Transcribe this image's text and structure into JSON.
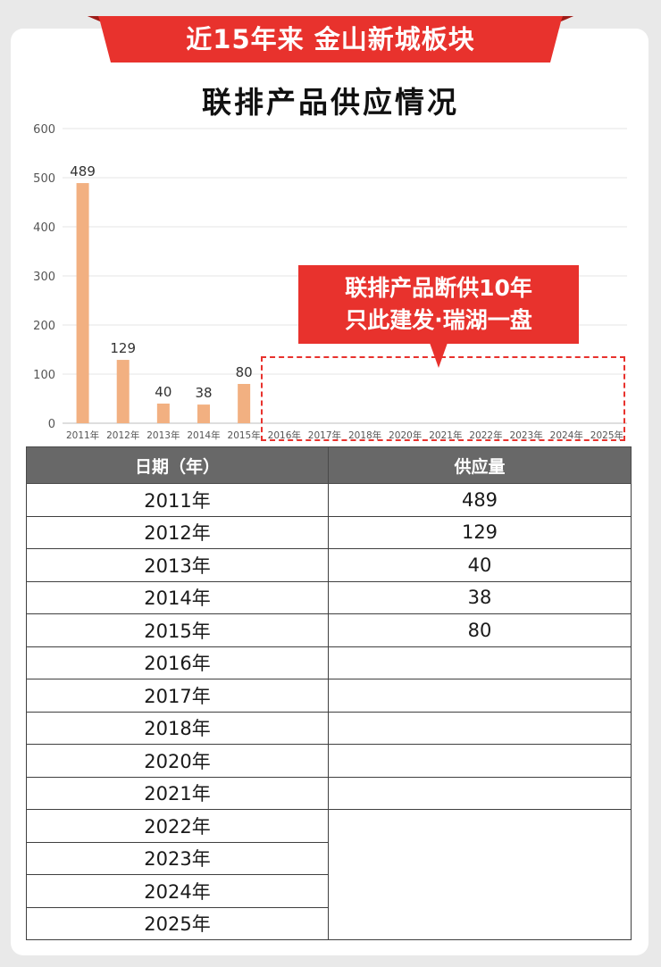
{
  "banner": {
    "text": "近15年来 金山新城板块"
  },
  "title": "联排产品供应情况",
  "callout": {
    "line1": "联排产品断供10年",
    "line2": "只此建发·瑞湖一盘"
  },
  "colors": {
    "bar": "#f2b081",
    "accent": "#e8322d",
    "header_bg": "#686868",
    "grid": "#e6e6e6"
  },
  "chart_data": {
    "type": "bar",
    "categories": [
      "2011年",
      "2012年",
      "2013年",
      "2014年",
      "2015年",
      "2016年",
      "2017年",
      "2018年",
      "2020年",
      "2021年",
      "2022年",
      "2023年",
      "2024年",
      "2025年"
    ],
    "values": [
      489,
      129,
      40,
      38,
      80,
      null,
      null,
      null,
      null,
      null,
      null,
      null,
      null,
      null
    ],
    "yticks": [
      0,
      100,
      200,
      300,
      400,
      500,
      600
    ],
    "ylim": [
      0,
      600
    ],
    "grid": true,
    "data_labels": true
  },
  "table": {
    "headers": [
      "日期（年）",
      "供应量"
    ],
    "rows": [
      [
        "2011年",
        "489"
      ],
      [
        "2012年",
        "129"
      ],
      [
        "2013年",
        "40"
      ],
      [
        "2014年",
        "38"
      ],
      [
        "2015年",
        "80"
      ],
      [
        "2016年",
        ""
      ],
      [
        "2017年",
        ""
      ],
      [
        "2018年",
        ""
      ],
      [
        "2020年",
        ""
      ],
      [
        "2021年",
        ""
      ],
      [
        "2022年",
        ""
      ],
      [
        "2023年",
        ""
      ],
      [
        "2024年",
        ""
      ],
      [
        "2025年",
        ""
      ]
    ]
  }
}
